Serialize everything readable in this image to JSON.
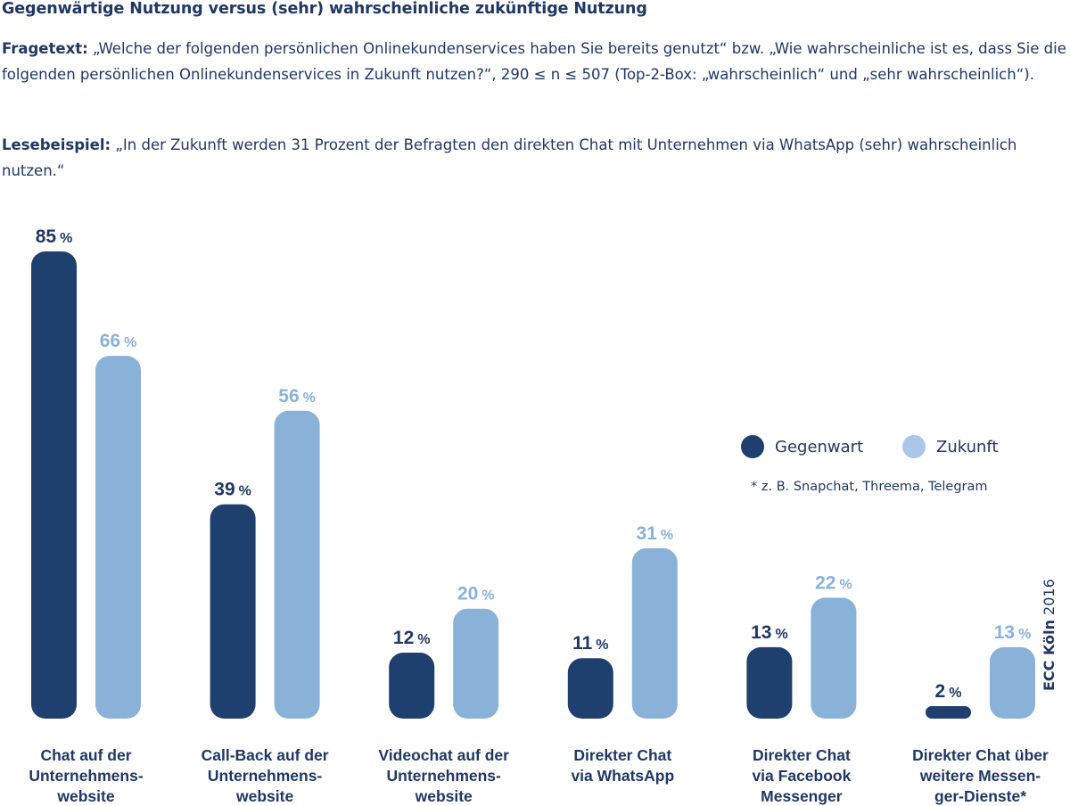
{
  "header": {
    "title": "Gegenwärtige Nutzung versus (sehr) wahrscheinliche zukünftige Nutzung",
    "fragetext_label": "Fragetext:",
    "fragetext": " „Welche der folgenden persönlichen Onlinekundenservices haben Sie bereits genutzt“ bzw. „Wie wahrscheinliche ist es, dass Sie die folgenden persönlichen Onlinekundenservices in Zukunft nutzen?“, 290 ≤ n ≤ 507 (Top-2-Box: „wahrscheinlich“ und „sehr wahrscheinlich“).",
    "lesebeispiel_label": "Lesebeispiel:",
    "lesebeispiel": " „In der Zukunft werden 31 Prozent der Befragten den direkten Chat mit Unternehmen via WhatsApp (sehr) wahrscheinlich nutzen.“"
  },
  "legend": {
    "items": [
      {
        "label": "Gegenwart",
        "color": "#1f3f6e"
      },
      {
        "label": "Zukunft",
        "color": "#a9c7e8"
      }
    ]
  },
  "footnote": "* z. B. Snapchat, Threema, Telegram",
  "credit": {
    "org": "ECC Köln",
    "year": "2016"
  },
  "chart_data": {
    "type": "bar",
    "categories": [
      "Chat auf der Unternehmens-website",
      "Call-Back auf der Unternehmens-website",
      "Videochat auf der Unternehmens-website",
      "Direkter Chat via WhatsApp",
      "Direkter Chat via Facebook Messenger",
      "Direkter Chat über weitere Messen-ger-Dienste*"
    ],
    "category_lines": [
      [
        "Chat auf der",
        "Unternehmens-",
        "website"
      ],
      [
        "Call-Back auf der",
        "Unternehmens-",
        "website"
      ],
      [
        "Videochat auf der",
        "Unternehmens-",
        "website"
      ],
      [
        "Direkter Chat",
        "via WhatsApp"
      ],
      [
        "Direkter Chat",
        "via Facebook",
        "Messenger"
      ],
      [
        "Direkter Chat über",
        "weitere Messen-",
        "ger-Dienste*"
      ]
    ],
    "series": [
      {
        "name": "Gegenwart",
        "values": [
          85,
          39,
          12,
          11,
          13,
          2
        ],
        "color": "#1f3f6e",
        "label_color": "#1f3864"
      },
      {
        "name": "Zukunft",
        "values": [
          66,
          56,
          20,
          31,
          22,
          13
        ],
        "color": "#8ab2d9",
        "label_color": "#8ab2d9"
      }
    ],
    "value_suffix": "%",
    "ylim": [
      0,
      85
    ],
    "grid": false,
    "legend_position": "right"
  }
}
